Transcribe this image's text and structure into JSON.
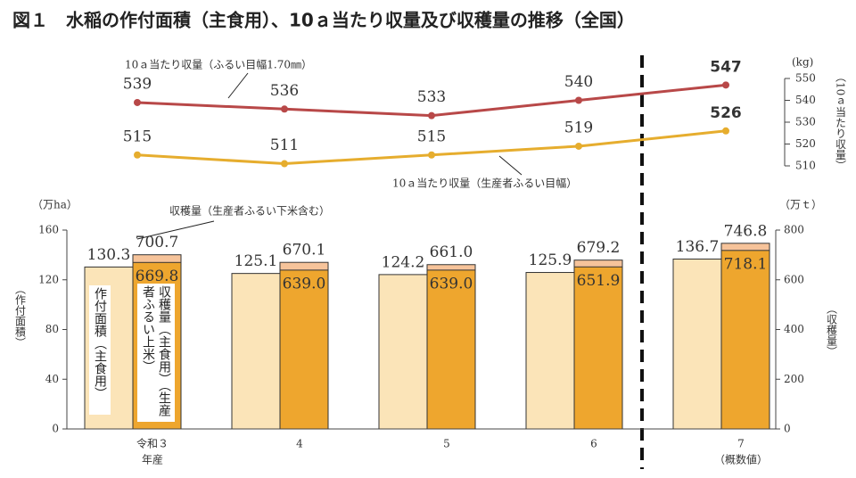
{
  "title": "図１　水稲の作付面積（主食用）、10ａ当たり収量及び収穫量の推移（全国）",
  "chart_data": [
    {
      "type": "line",
      "categories": [
        "令和３",
        "4",
        "5",
        "6",
        "7"
      ],
      "series": [
        {
          "name": "10ａ当たり収量（ふるい目幅1.70㎜）",
          "color": "#b84848",
          "values": [
            539,
            536,
            533,
            540,
            547
          ]
        },
        {
          "name": "10ａ当たり収量（生産者ふるい目幅）",
          "color": "#e6ad2e",
          "values": [
            515,
            511,
            515,
            519,
            526
          ]
        }
      ],
      "ylim": [
        510,
        550
      ],
      "yticks": [
        510,
        520,
        530,
        540,
        550
      ],
      "yunit": "(kg)",
      "ylabel": "（10ａ当たり収量）",
      "grid": false
    },
    {
      "type": "bar",
      "categories": [
        "令和３",
        "4",
        "5",
        "6",
        "7"
      ],
      "category_notes": [
        "年産",
        null,
        null,
        null,
        "（概数値）"
      ],
      "series": [
        {
          "name": "作付面積（主食用）",
          "color": "#fbe4b8",
          "axis": "y",
          "values": [
            130.3,
            125.1,
            124.2,
            125.9,
            136.7
          ],
          "value_labels": [
            "130.3",
            "125.1",
            "124.2",
            "125.9",
            "136.7"
          ]
        },
        {
          "name": "収穫量（生産者ふるい下米含む）",
          "color": "#f6c39a",
          "axis": "y2",
          "values": [
            700.7,
            670.1,
            661.0,
            679.2,
            746.8
          ],
          "value_labels": [
            "700.7",
            "670.1",
            "661.0",
            "679.2",
            "746.8"
          ]
        },
        {
          "name": "収穫量（主食用）（生産者ふるい上米）",
          "color": "#eea62e",
          "axis": "y2",
          "values": [
            669.8,
            639.0,
            639.0,
            651.9,
            718.1
          ],
          "value_labels": [
            "669.8",
            "639.0",
            "639.0",
            "651.9",
            "718.1"
          ]
        }
      ],
      "ylim": [
        0,
        160
      ],
      "yticks": [
        0,
        40,
        80,
        120,
        160
      ],
      "yunit": "（万ha）",
      "ylabel": "（作付面積）",
      "y2lim": [
        0,
        800
      ],
      "y2ticks": [
        0,
        200,
        400,
        600,
        800
      ],
      "y2unit": "（万ｔ）",
      "y2label": "（収穫量）",
      "grid": false
    }
  ]
}
